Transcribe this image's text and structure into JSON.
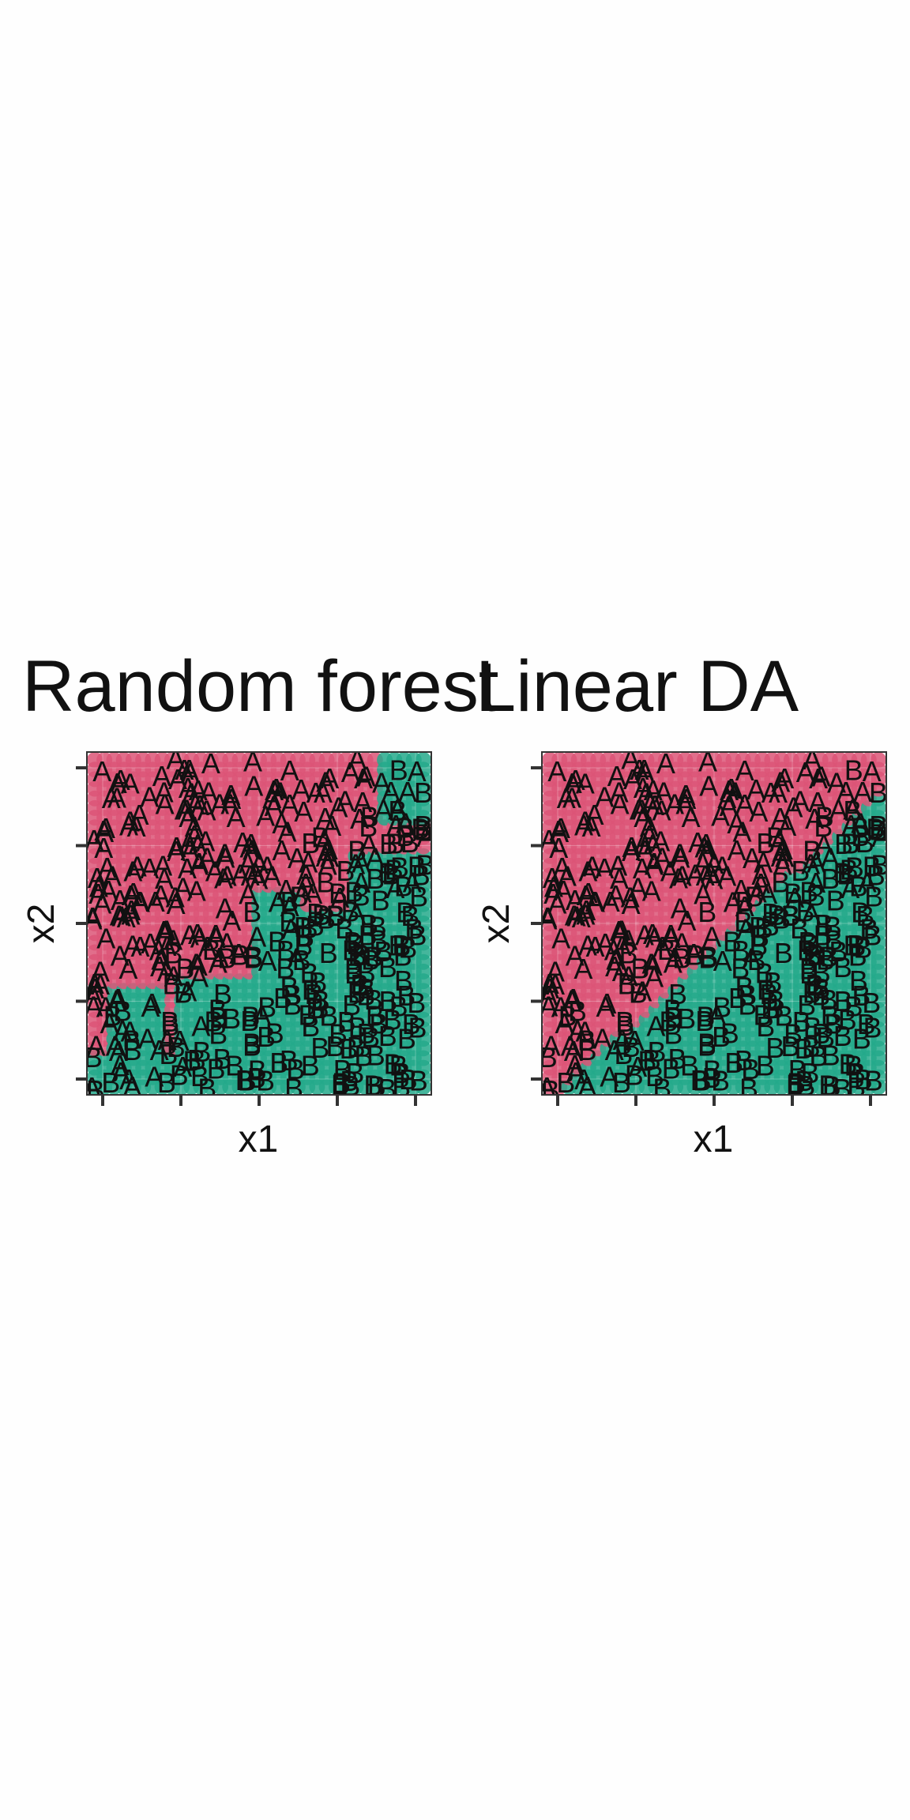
{
  "chart_data": [
    {
      "type": "scatter",
      "title": "Random forest",
      "xlabel": "x1",
      "ylabel": "x2",
      "xlim": [
        0,
        1
      ],
      "ylim": [
        0,
        1
      ],
      "grid": true,
      "legend": "none",
      "point_classes": [
        "A",
        "B"
      ],
      "background": "decision regions (grid of predicted class)"
    },
    {
      "type": "scatter",
      "title": "Linear DA",
      "xlabel": "x1",
      "ylabel": "x2",
      "xlim": [
        0,
        1
      ],
      "ylim": [
        0,
        1
      ],
      "grid": true,
      "legend": "none",
      "point_classes": [
        "A",
        "B"
      ],
      "background": "decision regions (grid of predicted class)"
    }
  ],
  "colors": {
    "class_A": "#dc5577",
    "class_B": "#25a98b",
    "frame": "#333333",
    "text": "#111111"
  }
}
